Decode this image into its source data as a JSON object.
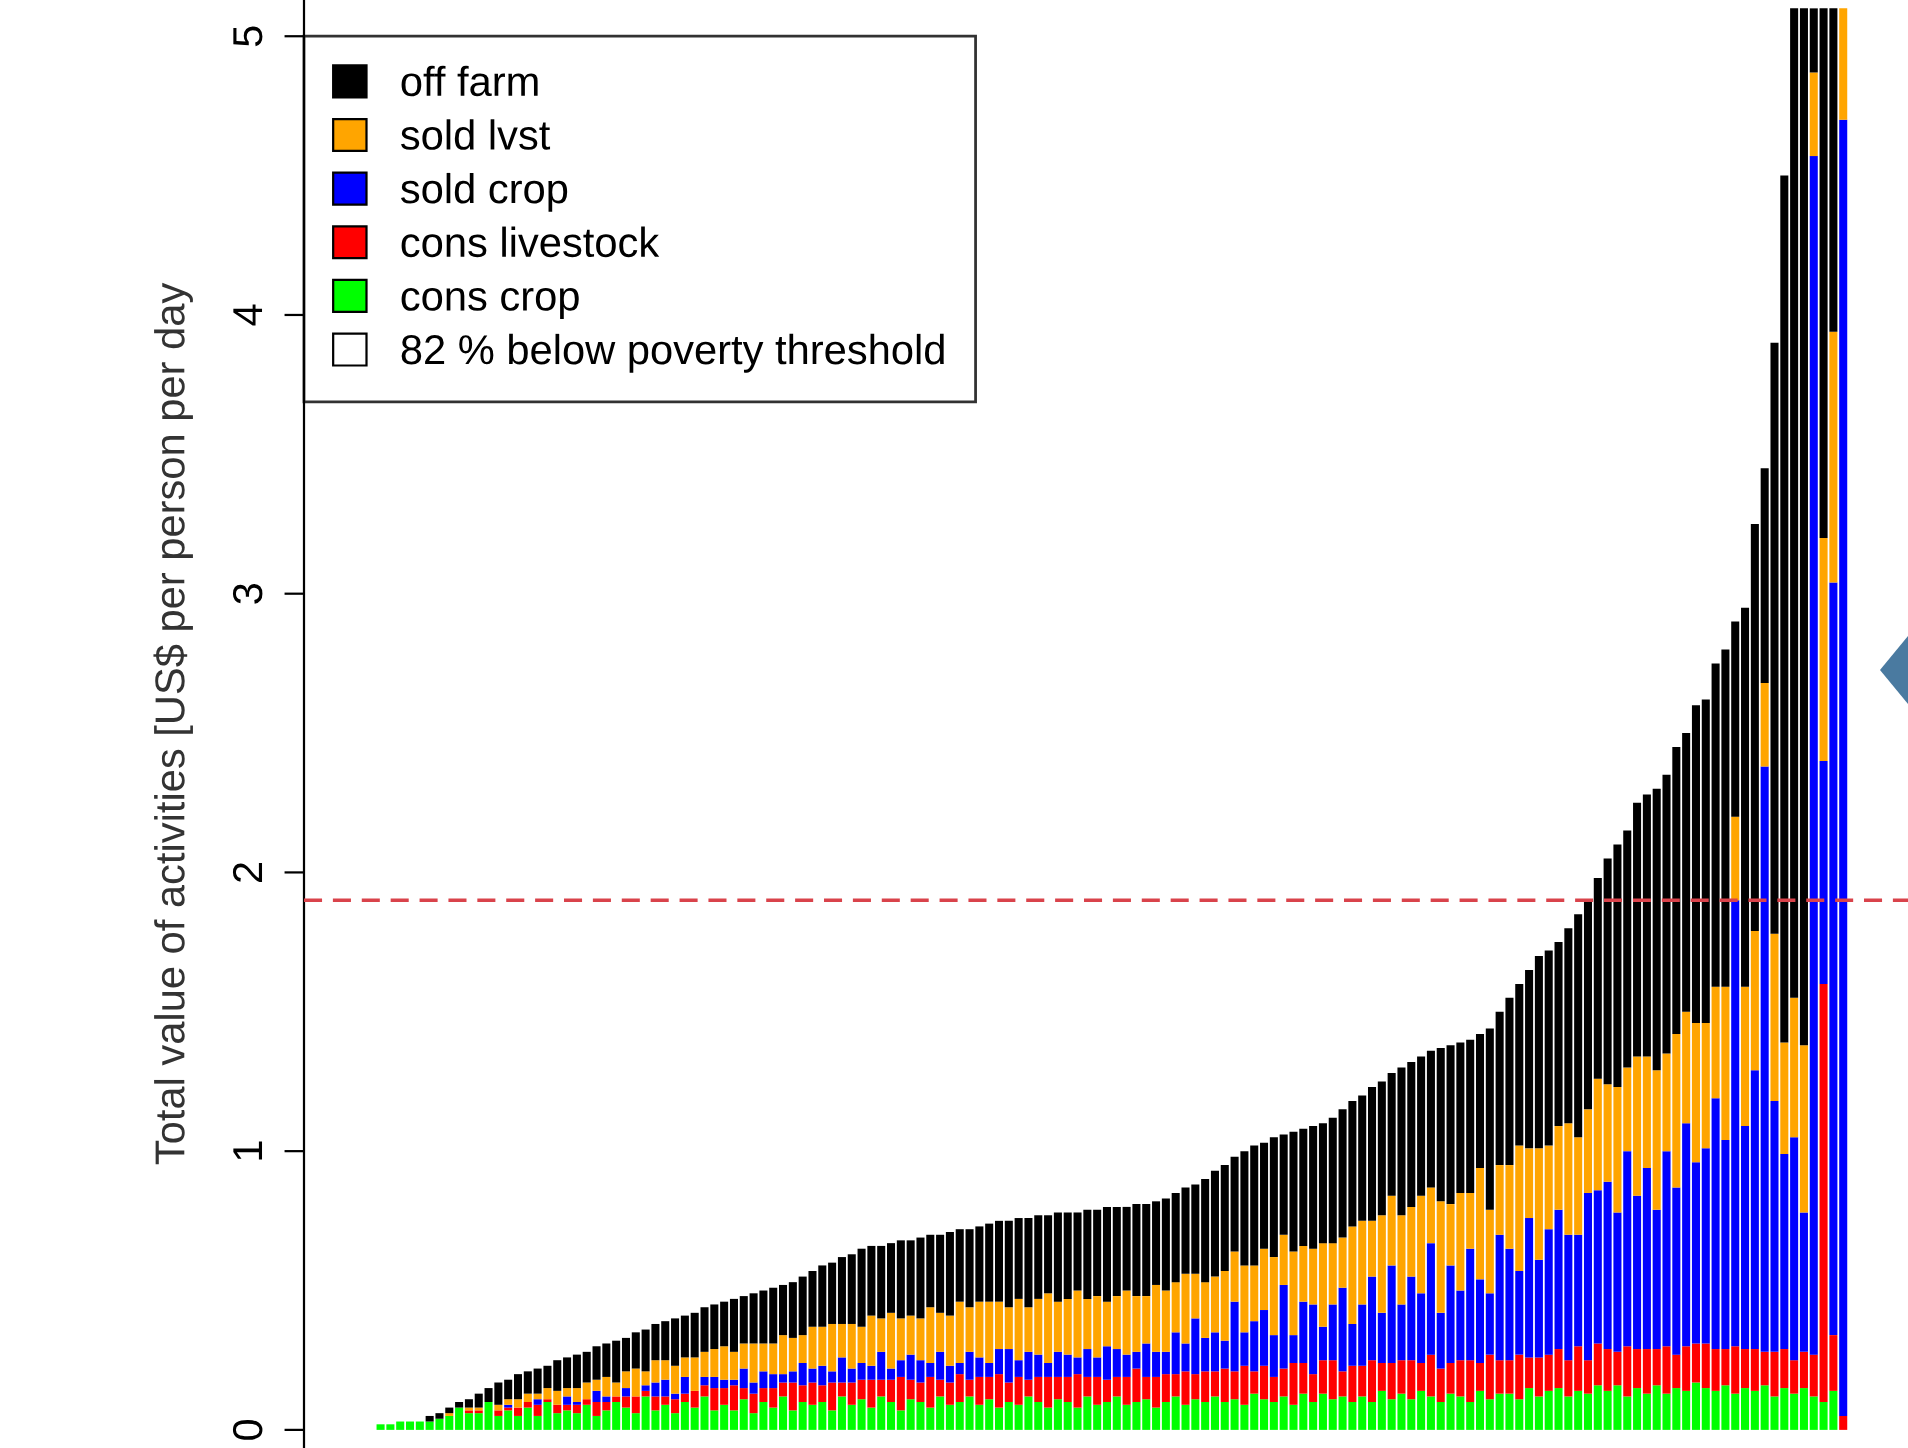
{
  "chart_data": {
    "type": "bar",
    "stacked": true,
    "ylabel": "Total value of activities [US$ per person per day",
    "categories": [
      null,
      null,
      null,
      null,
      null,
      null,
      null,
      null,
      null,
      null,
      null,
      null,
      null,
      null,
      null,
      null,
      null,
      null,
      null,
      null,
      null,
      null,
      null,
      null,
      null,
      null,
      null,
      null,
      null,
      null,
      null,
      null,
      null,
      null,
      null,
      null,
      null,
      null,
      null,
      null,
      null,
      null,
      null,
      null,
      null,
      null,
      null,
      null,
      null,
      null,
      null,
      null,
      null,
      null,
      null,
      null,
      null,
      null,
      null,
      null,
      null,
      null,
      null,
      null,
      null,
      null,
      null,
      null,
      null,
      null,
      null,
      null,
      null,
      null,
      null,
      null,
      null,
      null,
      null,
      null,
      null,
      null,
      null,
      null,
      null,
      null,
      null,
      null,
      null,
      null,
      null,
      null,
      null,
      null,
      null,
      null,
      null,
      null,
      null,
      null,
      null,
      null,
      null,
      null,
      null,
      null,
      null,
      null,
      null,
      null,
      null,
      null,
      null,
      null,
      null,
      null,
      null,
      null,
      null,
      null,
      null,
      null,
      null,
      null,
      null,
      null,
      null,
      null,
      null,
      null,
      null,
      null,
      null,
      null,
      null,
      null,
      null,
      null,
      null,
      null,
      null,
      null,
      null,
      null,
      null,
      null,
      null,
      null,
      null,
      null
    ],
    "series": [
      {
        "name": "cons crop",
        "color": "#00ff00",
        "values": [
          0.02,
          0.02,
          0.03,
          0.03,
          0.03,
          0.03,
          0.04,
          0.05,
          0.08,
          0.06,
          0.06,
          0.1,
          0.05,
          0.07,
          0.05,
          0.08,
          0.05,
          0.1,
          0.06,
          0.07,
          0.06,
          0.09,
          0.05,
          0.07,
          0.1,
          0.08,
          0.06,
          0.12,
          0.07,
          0.09,
          0.06,
          0.1,
          0.08,
          0.12,
          0.07,
          0.09,
          0.07,
          0.11,
          0.06,
          0.1,
          0.08,
          0.12,
          0.07,
          0.1,
          0.09,
          0.1,
          0.07,
          0.12,
          0.09,
          0.11,
          0.08,
          0.12,
          0.1,
          0.07,
          0.11,
          0.1,
          0.08,
          0.12,
          0.09,
          0.1,
          0.12,
          0.09,
          0.11,
          0.08,
          0.1,
          0.09,
          0.12,
          0.1,
          0.08,
          0.11,
          0.1,
          0.08,
          0.12,
          0.09,
          0.1,
          0.12,
          0.09,
          0.1,
          0.11,
          0.08,
          0.1,
          0.12,
          0.09,
          0.11,
          0.1,
          0.12,
          0.1,
          0.11,
          0.09,
          0.13,
          0.11,
          0.1,
          0.12,
          0.09,
          0.13,
          0.1,
          0.13,
          0.11,
          0.12,
          0.1,
          0.12,
          0.1,
          0.14,
          0.11,
          0.13,
          0.11,
          0.14,
          0.12,
          0.1,
          0.13,
          0.12,
          0.1,
          0.14,
          0.11,
          0.13,
          0.13,
          0.11,
          0.15,
          0.12,
          0.14,
          0.15,
          0.12,
          0.14,
          0.13,
          0.16,
          0.14,
          0.16,
          0.12,
          0.15,
          0.13,
          0.16,
          0.13,
          0.15,
          0.14,
          0.17,
          0.15,
          0.14,
          0.16,
          0.13,
          0.15,
          0.14,
          0.16,
          0.12,
          0.15,
          0.13,
          0.15,
          0.12,
          0.1,
          0.14,
          0
        ]
      },
      {
        "name": "cons livestock",
        "color": "#ff0000",
        "values": [
          0,
          0,
          0,
          0,
          0,
          0,
          0,
          0,
          0,
          0.01,
          0.01,
          0,
          0.02,
          0.01,
          0.03,
          0.02,
          0.04,
          0.01,
          0.03,
          0.02,
          0.03,
          0.02,
          0.05,
          0.03,
          0.02,
          0.04,
          0.06,
          0.02,
          0.05,
          0.03,
          0.05,
          0.03,
          0.06,
          0.04,
          0.08,
          0.06,
          0.09,
          0.04,
          0.07,
          0.05,
          0.07,
          0.05,
          0.1,
          0.06,
          0.08,
          0.06,
          0.1,
          0.05,
          0.08,
          0.07,
          0.1,
          0.06,
          0.08,
          0.12,
          0.07,
          0.07,
          0.11,
          0.06,
          0.08,
          0.1,
          0.06,
          0.1,
          0.08,
          0.12,
          0.07,
          0.1,
          0.06,
          0.09,
          0.11,
          0.08,
          0.09,
          0.12,
          0.07,
          0.1,
          0.08,
          0.07,
          0.1,
          0.12,
          0.08,
          0.11,
          0.1,
          0.08,
          0.12,
          0.09,
          0.11,
          0.09,
          0.12,
          0.1,
          0.14,
          0.08,
          0.12,
          0.09,
          0.1,
          0.15,
          0.11,
          0.1,
          0.12,
          0.14,
          0.09,
          0.13,
          0.11,
          0.15,
          0.1,
          0.13,
          0.12,
          0.14,
          0.1,
          0.15,
          0.12,
          0.11,
          0.13,
          0.15,
          0.1,
          0.16,
          0.12,
          0.12,
          0.16,
          0.11,
          0.14,
          0.13,
          0.14,
          0.13,
          0.16,
          0.12,
          0.15,
          0.15,
          0.12,
          0.18,
          0.14,
          0.16,
          0.13,
          0.17,
          0.12,
          0.16,
          0.14,
          0.16,
          0.15,
          0.13,
          0.17,
          0.14,
          0.15,
          0.12,
          0.16,
          0.14,
          0.12,
          0.13,
          0.15,
          1.5,
          0.2,
          0.05
        ]
      },
      {
        "name": "sold crop",
        "color": "#0000ff",
        "values": [
          0,
          0,
          0,
          0,
          0,
          0,
          0,
          0,
          0,
          0,
          0,
          0,
          0,
          0.01,
          0,
          0,
          0.02,
          0,
          0,
          0.03,
          0.01,
          0,
          0.04,
          0.02,
          0,
          0.03,
          0,
          0.02,
          0.05,
          0.06,
          0.02,
          0.06,
          0,
          0.03,
          0.04,
          0.03,
          0.02,
          0.07,
          0.04,
          0.06,
          0.05,
          0.03,
          0.04,
          0.08,
          0.05,
          0.07,
          0.04,
          0.09,
          0.05,
          0.06,
          0.05,
          0.1,
          0.04,
          0.06,
          0.09,
          0.08,
          0.05,
          0.1,
          0.06,
          0.04,
          0.1,
          0.07,
          0.05,
          0.09,
          0.12,
          0.06,
          0.1,
          0.08,
          0.05,
          0.09,
          0.08,
          0.06,
          0.1,
          0.07,
          0.12,
          0.1,
          0.08,
          0.06,
          0.12,
          0.09,
          0.08,
          0.15,
          0.1,
          0.2,
          0.12,
          0.14,
          0.1,
          0.25,
          0.12,
          0.18,
          0.2,
          0.15,
          0.3,
          0.1,
          0.22,
          0.25,
          0.12,
          0.2,
          0.3,
          0.15,
          0.22,
          0.3,
          0.18,
          0.35,
          0.2,
          0.3,
          0.25,
          0.4,
          0.2,
          0.35,
          0.25,
          0.4,
          0.3,
          0.22,
          0.45,
          0.4,
          0.3,
          0.5,
          0.35,
          0.45,
          0.5,
          0.45,
          0.4,
          0.6,
          0.55,
          0.6,
          0.5,
          0.7,
          0.55,
          0.65,
          0.5,
          0.7,
          0.6,
          0.8,
          0.65,
          0.7,
          0.9,
          0.75,
          1.6,
          0.8,
          1.0,
          2.1,
          0.9,
          0.7,
          0.8,
          0.5,
          4.3,
          0.8,
          2.7,
          4.65
        ]
      },
      {
        "name": "sold lvst",
        "color": "#ffa500",
        "values": [
          0,
          0,
          0,
          0,
          0,
          0,
          0,
          0.01,
          0,
          0.01,
          0.01,
          0,
          0.02,
          0.02,
          0.03,
          0.03,
          0.02,
          0.04,
          0.05,
          0.03,
          0.05,
          0.06,
          0.04,
          0.07,
          0.05,
          0.06,
          0.1,
          0.05,
          0.08,
          0.07,
          0.1,
          0.07,
          0.12,
          0.09,
          0.1,
          0.12,
          0.1,
          0.09,
          0.14,
          0.1,
          0.11,
          0.14,
          0.12,
          0.1,
          0.15,
          0.14,
          0.17,
          0.12,
          0.16,
          0.13,
          0.18,
          0.12,
          0.2,
          0.15,
          0.14,
          0.15,
          0.2,
          0.14,
          0.18,
          0.22,
          0.16,
          0.2,
          0.22,
          0.17,
          0.15,
          0.22,
          0.16,
          0.2,
          0.25,
          0.18,
          0.2,
          0.24,
          0.18,
          0.22,
          0.16,
          0.19,
          0.23,
          0.2,
          0.17,
          0.24,
          0.22,
          0.18,
          0.25,
          0.16,
          0.2,
          0.2,
          0.25,
          0.18,
          0.24,
          0.2,
          0.22,
          0.28,
          0.18,
          0.3,
          0.2,
          0.2,
          0.3,
          0.22,
          0.18,
          0.35,
          0.3,
          0.2,
          0.35,
          0.25,
          0.32,
          0.25,
          0.35,
          0.2,
          0.4,
          0.22,
          0.35,
          0.2,
          0.4,
          0.3,
          0.25,
          0.3,
          0.45,
          0.25,
          0.4,
          0.3,
          0.3,
          0.4,
          0.35,
          0.3,
          0.4,
          0.35,
          0.45,
          0.3,
          0.5,
          0.4,
          0.5,
          0.35,
          0.55,
          0.4,
          0.5,
          0.45,
          0.4,
          0.55,
          0.3,
          0.5,
          0.5,
          0.3,
          0.6,
          0.4,
          0.5,
          0.6,
          0.3,
          0.8,
          0.9,
          0.4
        ]
      },
      {
        "name": "off farm",
        "color": "#000000",
        "values": [
          0,
          0,
          0,
          0,
          0,
          0.02,
          0.02,
          0.02,
          0.02,
          0.03,
          0.05,
          0.05,
          0.08,
          0.07,
          0.09,
          0.08,
          0.09,
          0.08,
          0.11,
          0.11,
          0.12,
          0.11,
          0.12,
          0.12,
          0.15,
          0.12,
          0.13,
          0.15,
          0.13,
          0.14,
          0.17,
          0.15,
          0.16,
          0.16,
          0.16,
          0.16,
          0.19,
          0.17,
          0.18,
          0.19,
          0.2,
          0.18,
          0.2,
          0.21,
          0.2,
          0.22,
          0.22,
          0.24,
          0.25,
          0.28,
          0.25,
          0.26,
          0.25,
          0.28,
          0.27,
          0.29,
          0.26,
          0.28,
          0.3,
          0.26,
          0.28,
          0.27,
          0.28,
          0.29,
          0.31,
          0.29,
          0.32,
          0.3,
          0.28,
          0.32,
          0.31,
          0.28,
          0.32,
          0.31,
          0.34,
          0.32,
          0.3,
          0.33,
          0.33,
          0.3,
          0.33,
          0.32,
          0.31,
          0.32,
          0.37,
          0.38,
          0.38,
          0.34,
          0.41,
          0.43,
          0.38,
          0.43,
          0.36,
          0.43,
          0.42,
          0.44,
          0.43,
          0.45,
          0.46,
          0.45,
          0.45,
          0.48,
          0.48,
          0.44,
          0.53,
          0.52,
          0.5,
          0.49,
          0.55,
          0.57,
          0.54,
          0.55,
          0.48,
          0.65,
          0.55,
          0.6,
          0.58,
          0.64,
          0.69,
          0.7,
          0.66,
          0.7,
          0.8,
          0.75,
          0.72,
          0.81,
          0.87,
          0.85,
          0.91,
          0.94,
          1.01,
          1.0,
          1.03,
          1.0,
          1.14,
          1.16,
          1.16,
          1.21,
          0.7,
          1.36,
          1.46,
          0.77,
          2.12,
          3.11,
          3.55,
          3.72,
          0.23,
          1.9,
          1.16,
          0
        ]
      }
    ],
    "ylim": [
      -0.065,
      5.13
    ],
    "yticks": [
      0,
      1,
      2,
      3,
      4,
      5
    ],
    "ref_lines": [
      {
        "axis": "y",
        "value": 1.9,
        "color": "#d9434b",
        "line_style": "dashed"
      }
    ],
    "annotations": [
      "82 % below poverty threshold"
    ],
    "legend": "top left",
    "grid": false
  }
}
